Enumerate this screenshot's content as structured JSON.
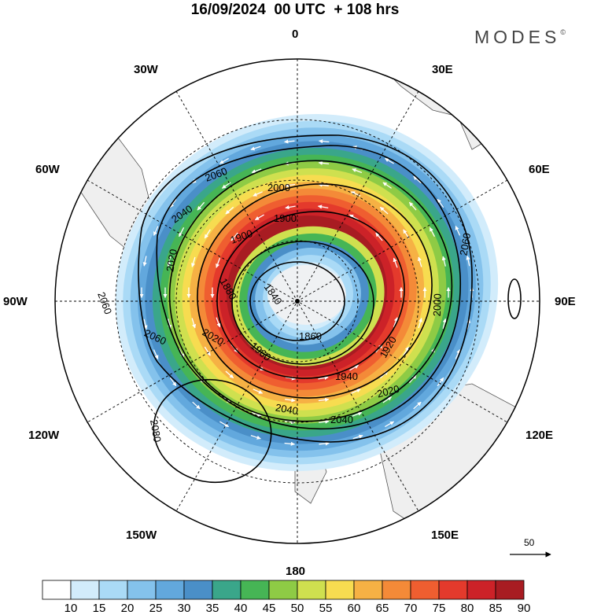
{
  "header": {
    "title": "16/09/2024  00 UTC  + 108 hrs",
    "brand": "MODES",
    "brand_mark": "©"
  },
  "map": {
    "projection": "south polar stereographic",
    "longitude_labels": [
      "0",
      "30E",
      "60E",
      "90E",
      "120E",
      "150E",
      "180",
      "150W",
      "120W",
      "90W",
      "60W",
      "30W"
    ],
    "contour_labels": [
      "1840",
      "1860",
      "1880",
      "1900",
      "1900",
      "1920",
      "1940",
      "1960",
      "2000",
      "2000",
      "2020",
      "2020",
      "2020",
      "2040",
      "2040",
      "2040",
      "2060",
      "2060",
      "2060",
      "2060",
      "2080"
    ],
    "colors": {
      "land": "#efefef",
      "coastline": "#555555",
      "contour": "#000000",
      "wind_arrow": "#ffffff"
    }
  },
  "colorbar": {
    "labels": [
      "10",
      "15",
      "20",
      "25",
      "30",
      "35",
      "40",
      "45",
      "50",
      "55",
      "60",
      "65",
      "70",
      "75",
      "80",
      "85",
      "90"
    ],
    "colors": [
      "#ffffff",
      "#d2ecfb",
      "#aadaf6",
      "#84c2ec",
      "#62a8dd",
      "#4a8fc8",
      "#3aa68a",
      "#46b555",
      "#8ecb45",
      "#cfe04f",
      "#f7dc50",
      "#f6b144",
      "#f48a38",
      "#ef5e30",
      "#e43a2c",
      "#cc2228",
      "#a81c22"
    ]
  },
  "scale_arrow": {
    "label": "50"
  }
}
